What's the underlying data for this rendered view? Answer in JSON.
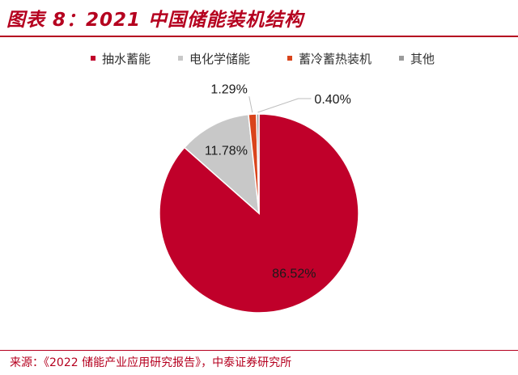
{
  "header": {
    "title": "图表 8：2021 中国储能装机结构"
  },
  "footer": {
    "source": "来源：《2022 储能产业应用研究报告》，中泰证券研究所"
  },
  "chart_data": {
    "type": "pie",
    "title": "图表 8：2021 中国储能装机结构",
    "labels": [
      "抽水蓄能",
      "电化学储能",
      "蓄冷蓄热装机",
      "其他"
    ],
    "values": [
      86.52,
      11.78,
      1.29,
      0.4
    ],
    "value_labels": [
      "86.52%",
      "11.78%",
      "1.29%",
      "0.40%"
    ],
    "unit": "%",
    "colors": [
      "#c0002a",
      "#c8c8c8",
      "#d9441c",
      "#9b9b9b"
    ],
    "start_angle_deg": 0,
    "direction": "clockwise",
    "legend": "top"
  }
}
